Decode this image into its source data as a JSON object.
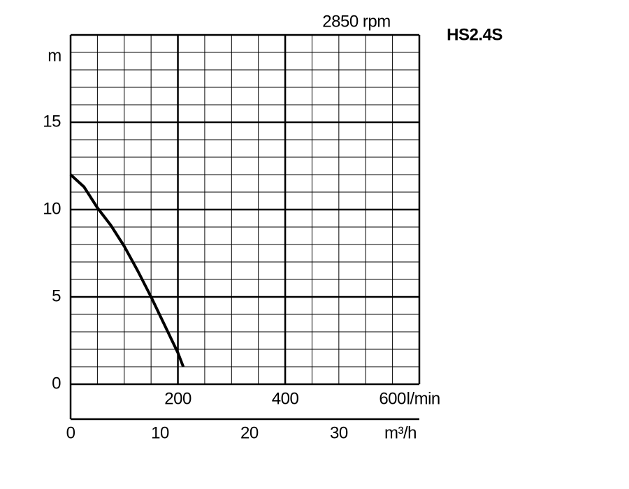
{
  "chart_data": {
    "type": "line",
    "title": "HS2.4S",
    "subtitle": "2850 rpm",
    "y_label": "m",
    "x_label": "l/min",
    "x2_label": "m³/h",
    "x": [
      0,
      25,
      50,
      75,
      100,
      125,
      150,
      175,
      200,
      210
    ],
    "series": [
      {
        "color": "#000000",
        "values": [
          12,
          11.3,
          10.1,
          9.1,
          7.9,
          6.5,
          5,
          3.4,
          1.8,
          1
        ]
      }
    ],
    "ylim": [
      0,
      20
    ],
    "yticks": [
      0,
      5,
      10,
      15
    ],
    "ygrid": [
      0,
      1,
      2,
      3,
      4,
      5,
      6,
      7,
      8,
      9,
      10,
      11,
      12,
      13,
      14,
      15,
      16,
      17,
      18,
      19,
      20
    ],
    "xlim": [
      0,
      650
    ],
    "xticks": [
      200,
      400,
      600
    ],
    "xgrid": [
      0,
      50,
      100,
      150,
      200,
      250,
      300,
      350,
      400,
      450,
      500,
      550,
      600,
      650
    ],
    "x2lim": [
      0,
      39
    ],
    "x2ticks": [
      0,
      10,
      20,
      30
    ]
  }
}
